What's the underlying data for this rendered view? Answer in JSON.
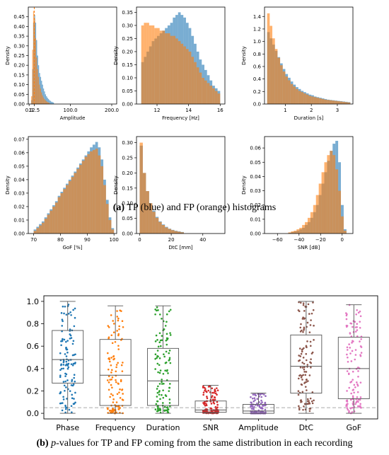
{
  "colors": {
    "tp": "#1f77b4",
    "fp": "#ff7f0e"
  },
  "captions": {
    "a": {
      "tag": "(a)",
      "text": " TP (blue) and FP (orange) histograms"
    },
    "b": {
      "tag": "(b)",
      "p": "p",
      "text": "-values for TP and FP coming from the same distribution in each recording"
    }
  },
  "chart_data": [
    {
      "type": "histogram",
      "xlabel": "Amplitude",
      "ylabel": "Density",
      "xlim": [
        -2,
        212
      ],
      "ylim": [
        0,
        0.5
      ],
      "xticks": [
        {
          "v": 0,
          "label": "0.0"
        },
        {
          "v": 12.5,
          "label": "12.5"
        },
        {
          "v": 100,
          "label": "100.0"
        },
        {
          "v": 200,
          "label": "200.0"
        }
      ],
      "yticks": [
        0,
        0.05,
        0.1,
        0.15,
        0.2,
        0.25,
        0.3,
        0.35,
        0.4,
        0.45
      ],
      "ytick_decimals": 2,
      "vline": 12.5,
      "series": [
        {
          "name": "TP",
          "x_start": 5,
          "x_end": 60,
          "values": [
            0.02,
            0.18,
            0.42,
            0.46,
            0.42,
            0.33,
            0.25,
            0.2,
            0.16,
            0.14,
            0.12,
            0.1,
            0.08,
            0.065,
            0.05,
            0.04,
            0.032,
            0.026,
            0.02,
            0.016,
            0.012,
            0.01,
            0.008
          ]
        },
        {
          "name": "FP",
          "x_start": 5,
          "x_end": 50,
          "values": [
            0.04,
            0.28,
            0.48,
            0.44,
            0.34,
            0.24,
            0.18,
            0.14,
            0.1,
            0.08,
            0.06,
            0.045,
            0.034,
            0.026,
            0.02,
            0.015,
            0.011,
            0.008,
            0.006
          ]
        }
      ]
    },
    {
      "type": "histogram",
      "xlabel": "Frequency [Hz]",
      "ylabel": "Density",
      "xlim": [
        10.7,
        16.3
      ],
      "ylim": [
        0,
        0.37
      ],
      "xticks": [
        {
          "v": 12,
          "label": "12"
        },
        {
          "v": 14,
          "label": "14"
        },
        {
          "v": 16,
          "label": "16"
        }
      ],
      "yticks": [
        0,
        0.05,
        0.1,
        0.15,
        0.2,
        0.25,
        0.3,
        0.35
      ],
      "ytick_decimals": 2,
      "series": [
        {
          "name": "TP",
          "x_start": 11,
          "x_end": 16,
          "values": [
            0.16,
            0.18,
            0.2,
            0.22,
            0.24,
            0.25,
            0.26,
            0.27,
            0.28,
            0.29,
            0.3,
            0.31,
            0.33,
            0.34,
            0.35,
            0.34,
            0.33,
            0.31,
            0.29,
            0.26,
            0.23,
            0.2,
            0.17,
            0.15,
            0.13,
            0.11,
            0.09,
            0.07,
            0.06,
            0.05
          ]
        },
        {
          "name": "FP",
          "x_start": 11,
          "x_end": 16,
          "values": [
            0.3,
            0.31,
            0.31,
            0.3,
            0.3,
            0.29,
            0.29,
            0.28,
            0.28,
            0.27,
            0.27,
            0.26,
            0.26,
            0.25,
            0.24,
            0.23,
            0.22,
            0.21,
            0.2,
            0.18,
            0.16,
            0.14,
            0.12,
            0.1,
            0.09,
            0.08,
            0.07,
            0.06,
            0.05,
            0.04
          ]
        }
      ]
    },
    {
      "type": "histogram",
      "xlabel": "Duration [s]",
      "ylabel": "Density",
      "xlim": [
        0.2,
        3.6
      ],
      "ylim": [
        0,
        1.55
      ],
      "xticks": [
        {
          "v": 1,
          "label": "1"
        },
        {
          "v": 2,
          "label": "2"
        },
        {
          "v": 3,
          "label": "3"
        }
      ],
      "yticks": [
        0,
        0.2,
        0.4,
        0.6,
        0.8,
        1.0,
        1.2,
        1.4
      ],
      "ytick_decimals": 1,
      "series": [
        {
          "name": "TP",
          "x_start": 0.3,
          "x_end": 3.5,
          "values": [
            1.15,
            1.05,
            0.95,
            0.85,
            0.75,
            0.65,
            0.56,
            0.48,
            0.42,
            0.36,
            0.31,
            0.27,
            0.24,
            0.21,
            0.19,
            0.17,
            0.15,
            0.14,
            0.12,
            0.11,
            0.1,
            0.09,
            0.08,
            0.07,
            0.065,
            0.06,
            0.055,
            0.05,
            0.045,
            0.04,
            0.035,
            0.03
          ]
        },
        {
          "name": "FP",
          "x_start": 0.3,
          "x_end": 3.5,
          "values": [
            1.45,
            1.25,
            1.05,
            0.88,
            0.74,
            0.62,
            0.52,
            0.44,
            0.38,
            0.32,
            0.28,
            0.24,
            0.21,
            0.19,
            0.17,
            0.15,
            0.13,
            0.12,
            0.11,
            0.1,
            0.09,
            0.08,
            0.07,
            0.065,
            0.06,
            0.055,
            0.05,
            0.045,
            0.04,
            0.035,
            0.03,
            0.025
          ]
        }
      ]
    },
    {
      "type": "histogram",
      "xlabel": "GoF [%]",
      "ylabel": "Density",
      "xlim": [
        68,
        101
      ],
      "ylim": [
        0,
        0.072
      ],
      "xticks": [
        {
          "v": 70,
          "label": "70"
        },
        {
          "v": 80,
          "label": "80"
        },
        {
          "v": 90,
          "label": "90"
        },
        {
          "v": 100,
          "label": "100"
        }
      ],
      "yticks": [
        0,
        0.01,
        0.02,
        0.03,
        0.04,
        0.05,
        0.06,
        0.07
      ],
      "ytick_decimals": 2,
      "series": [
        {
          "name": "TP",
          "x_start": 70,
          "x_end": 100,
          "values": [
            0.003,
            0.005,
            0.007,
            0.009,
            0.012,
            0.015,
            0.018,
            0.021,
            0.024,
            0.028,
            0.031,
            0.034,
            0.037,
            0.04,
            0.043,
            0.046,
            0.049,
            0.052,
            0.055,
            0.058,
            0.061,
            0.064,
            0.066,
            0.068,
            0.064,
            0.055,
            0.04,
            0.025,
            0.012,
            0.004
          ]
        },
        {
          "name": "FP",
          "x_start": 70,
          "x_end": 100,
          "values": [
            0.002,
            0.004,
            0.006,
            0.008,
            0.011,
            0.014,
            0.017,
            0.02,
            0.023,
            0.027,
            0.03,
            0.033,
            0.036,
            0.039,
            0.042,
            0.045,
            0.048,
            0.051,
            0.054,
            0.057,
            0.059,
            0.061,
            0.062,
            0.063,
            0.058,
            0.05,
            0.036,
            0.022,
            0.01,
            0.003
          ]
        }
      ]
    },
    {
      "type": "histogram",
      "xlabel": "DtC [mm]",
      "ylabel": "Density",
      "xlim": [
        -2,
        54
      ],
      "ylim": [
        0,
        0.32
      ],
      "xticks": [
        {
          "v": 0,
          "label": "0"
        },
        {
          "v": 20,
          "label": "20"
        },
        {
          "v": 40,
          "label": "40"
        }
      ],
      "yticks": [
        0,
        0.05,
        0.1,
        0.15,
        0.2,
        0.25,
        0.3
      ],
      "ytick_decimals": 2,
      "series": [
        {
          "name": "TP",
          "x_start": 0,
          "x_end": 28,
          "values": [
            0.29,
            0.2,
            0.14,
            0.1,
            0.075,
            0.055,
            0.04,
            0.03,
            0.022,
            0.016,
            0.012,
            0.009,
            0.007,
            0.005
          ]
        },
        {
          "name": "FP",
          "x_start": 0,
          "x_end": 28,
          "values": [
            0.3,
            0.2,
            0.14,
            0.1,
            0.072,
            0.052,
            0.038,
            0.028,
            0.02,
            0.015,
            0.011,
            0.008,
            0.006,
            0.004
          ]
        }
      ]
    },
    {
      "type": "histogram",
      "xlabel": "SNR [dB]",
      "ylabel": "Density",
      "xlim": [
        -72,
        10
      ],
      "ylim": [
        0,
        0.068
      ],
      "xticks": [
        {
          "v": -60,
          "label": "−60"
        },
        {
          "v": -40,
          "label": "−40"
        },
        {
          "v": -20,
          "label": "−20"
        },
        {
          "v": 0,
          "label": "0"
        }
      ],
      "yticks": [
        0,
        0.01,
        0.02,
        0.03,
        0.04,
        0.05,
        0.06
      ],
      "ytick_decimals": 2,
      "series": [
        {
          "name": "TP",
          "x_start": -50,
          "x_end": 4,
          "values": [
            0.0005,
            0.001,
            0.0015,
            0.002,
            0.003,
            0.004,
            0.006,
            0.008,
            0.011,
            0.015,
            0.02,
            0.027,
            0.035,
            0.043,
            0.051,
            0.058,
            0.063,
            0.065,
            0.05,
            0.02,
            0.003
          ]
        },
        {
          "name": "FP",
          "x_start": -50,
          "x_end": 4,
          "values": [
            0.0008,
            0.0015,
            0.002,
            0.003,
            0.004,
            0.006,
            0.008,
            0.011,
            0.015,
            0.02,
            0.027,
            0.035,
            0.043,
            0.05,
            0.055,
            0.058,
            0.055,
            0.045,
            0.03,
            0.012,
            0.002
          ]
        }
      ]
    },
    {
      "type": "boxplot",
      "ylim": [
        -0.05,
        1.05
      ],
      "yticks": [
        0,
        0.2,
        0.4,
        0.6,
        0.8,
        1.0
      ],
      "ytick_decimals": 1,
      "categories": [
        "Phase",
        "Frequency",
        "Duration",
        "SNR",
        "Amplitude",
        "DtC",
        "GoF"
      ],
      "point_colors": [
        "#1f77b4",
        "#ff7f0e",
        "#2ca02c",
        "#d62728",
        "#9467bd",
        "#8c564b",
        "#e377c2"
      ],
      "threshold": 0.05,
      "boxes": [
        {
          "min": 0.0,
          "q1": 0.27,
          "median": 0.48,
          "q3": 0.74,
          "max": 1.0
        },
        {
          "min": 0.0,
          "q1": 0.07,
          "median": 0.34,
          "q3": 0.66,
          "max": 0.96
        },
        {
          "min": 0.0,
          "q1": 0.07,
          "median": 0.29,
          "q3": 0.58,
          "max": 0.96
        },
        {
          "min": 0.0,
          "q1": 0.01,
          "median": 0.03,
          "q3": 0.11,
          "max": 0.25
        },
        {
          "min": 0.0,
          "q1": 0.0,
          "median": 0.02,
          "q3": 0.08,
          "max": 0.18
        },
        {
          "min": 0.0,
          "q1": 0.18,
          "median": 0.42,
          "q3": 0.7,
          "max": 1.0
        },
        {
          "min": 0.0,
          "q1": 0.13,
          "median": 0.4,
          "q3": 0.68,
          "max": 0.97
        }
      ]
    }
  ]
}
